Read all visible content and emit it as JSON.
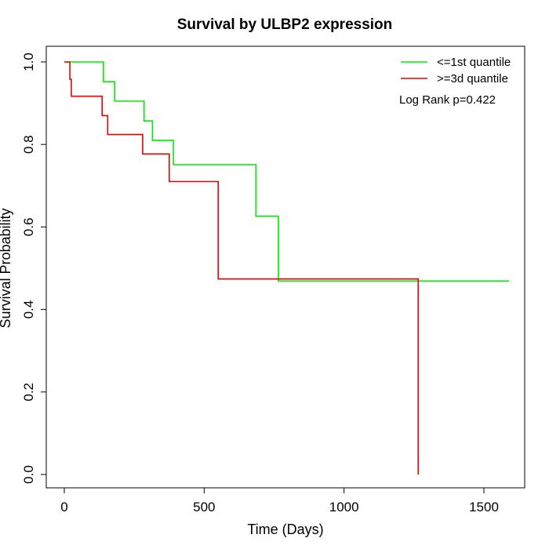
{
  "chart_data": {
    "type": "line",
    "title": "Survival by ULBP2 expression",
    "xlabel": "Time (Days)",
    "ylabel": "Survival Probability",
    "xlim": [
      0,
      1590
    ],
    "ylim": [
      0,
      1.0
    ],
    "x_ticks": [
      0,
      500,
      1000,
      1500
    ],
    "x_tick_labels": [
      "0",
      "500",
      "1000",
      "1500"
    ],
    "y_ticks": [
      0.0,
      0.2,
      0.4,
      0.6,
      0.8,
      1.0
    ],
    "y_tick_labels": [
      "0.0",
      "0.2",
      "0.4",
      "0.6",
      "0.8",
      "1.0"
    ],
    "grid": false,
    "legend_position": "top-right",
    "annotation": "Log Rank p=0.422",
    "series": [
      {
        "name": "<=1st quantile",
        "color": "#00ee00",
        "x": [
          0,
          140,
          180,
          285,
          315,
          390,
          685,
          765,
          1590
        ],
        "y": [
          1.0,
          0.952,
          0.905,
          0.857,
          0.81,
          0.751,
          0.626,
          0.469,
          0.469
        ]
      },
      {
        "name": ">=3d quantile",
        "color": "#ee0000",
        "x": [
          0,
          20,
          25,
          135,
          155,
          280,
          375,
          550,
          1265,
          1265
        ],
        "y": [
          1.0,
          0.958,
          0.917,
          0.87,
          0.824,
          0.777,
          0.71,
          0.474,
          0.474,
          0.0
        ]
      }
    ]
  }
}
